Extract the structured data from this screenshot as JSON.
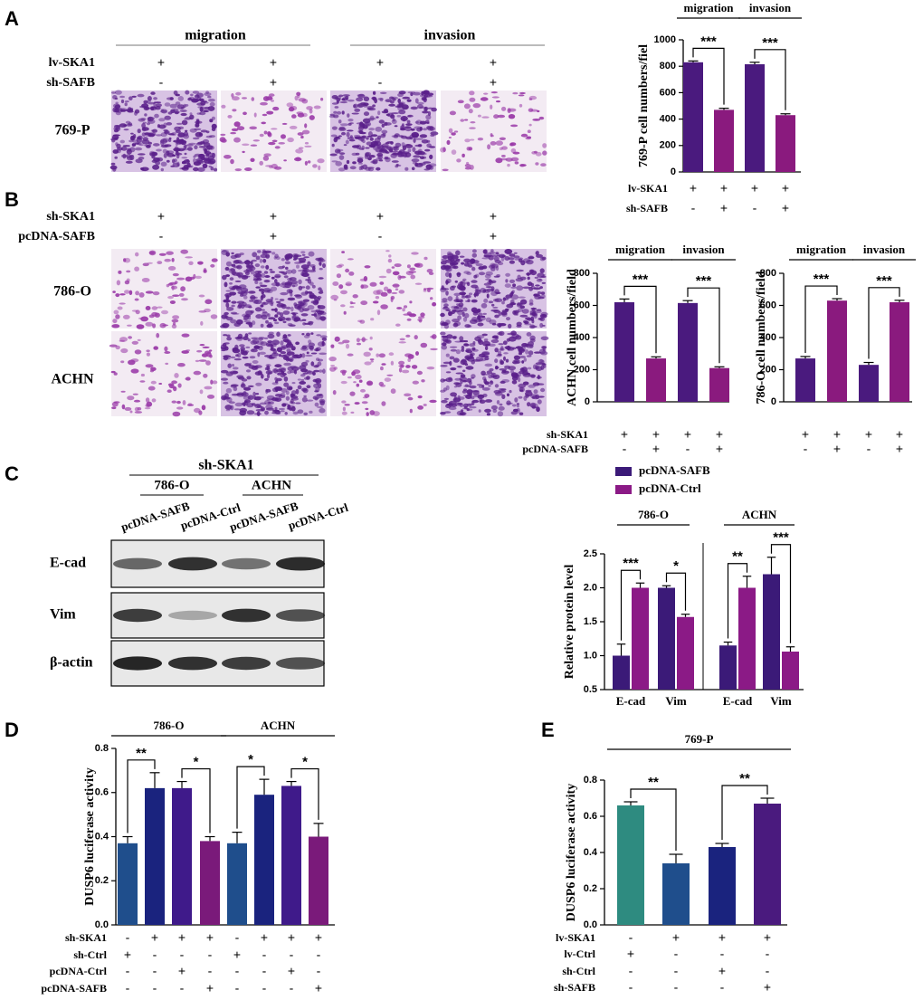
{
  "panels": {
    "letters": [
      "A",
      "B",
      "C",
      "D",
      "E"
    ]
  },
  "panel_a": {
    "headers": [
      "migration",
      "invasion"
    ],
    "rows": [
      {
        "label": "lv-SKA1",
        "signs": [
          "+",
          "+",
          "+",
          "+"
        ]
      },
      {
        "label": "sh-SAFB",
        "signs": [
          "-",
          "+",
          "-",
          "+"
        ]
      }
    ],
    "cell_lines": [
      "769-P"
    ]
  },
  "panel_b": {
    "rows": [
      {
        "label": "sh-SKA1",
        "signs": [
          "+",
          "+",
          "+",
          "+"
        ]
      },
      {
        "label": "pcDNA-SAFB",
        "signs": [
          "-",
          "+",
          "-",
          "+"
        ]
      }
    ],
    "cell_lines": [
      "786-O",
      "ACHN"
    ]
  },
  "panel_c": {
    "treatment": "sh-SKA1",
    "groups": [
      "786-O",
      "ACHN"
    ],
    "lanes": [
      "pcDNA-SAFB",
      "pcDNA-Ctrl",
      "pcDNA-SAFB",
      "pcDNA-Ctrl"
    ],
    "proteins": [
      "E-cad",
      "Vim",
      "β-actin"
    ]
  },
  "chart_data": [
    {
      "type": "bar",
      "ylabel": "769-P cell numbers/fiel",
      "ylim": [
        0,
        1000
      ],
      "yticks": [
        0,
        200,
        400,
        600,
        800,
        1000
      ],
      "series": [
        {
          "values": [
            830,
            470,
            815,
            430
          ],
          "errors": [
            10,
            12,
            15,
            10
          ],
          "colors": [
            "#4a1a7e",
            "#8a1a7e",
            "#4a1a7e",
            "#8a1a7e"
          ]
        }
      ],
      "groups": [
        "migration",
        "invasion"
      ],
      "significance": [
        "***",
        "***"
      ],
      "conditions": [
        {
          "label": "lv-SKA1",
          "signs": [
            "+",
            "+",
            "+",
            "+"
          ]
        },
        {
          "label": "sh-SAFB",
          "signs": [
            "-",
            "+",
            "-",
            "+"
          ]
        }
      ]
    },
    {
      "type": "bar",
      "ylabel": "ACHN cell numbers/field",
      "ylim": [
        0,
        800
      ],
      "yticks": [
        0,
        200,
        400,
        600,
        800
      ],
      "series": [
        {
          "values": [
            620,
            270,
            615,
            210
          ],
          "errors": [
            20,
            10,
            15,
            8
          ],
          "colors": [
            "#4a1a7e",
            "#8a1a7e",
            "#4a1a7e",
            "#8a1a7e"
          ]
        }
      ],
      "groups": [
        "migration",
        "invasion"
      ],
      "significance": [
        "***",
        "***"
      ],
      "conditions": [
        {
          "label": "sh-SKA1",
          "signs": [
            "+",
            "+",
            "+",
            "+"
          ]
        },
        {
          "label": "pcDNA-SAFB",
          "signs": [
            "-",
            "+",
            "-",
            "+"
          ]
        }
      ]
    },
    {
      "type": "bar",
      "ylabel": "786-O cell numbers/field",
      "ylim": [
        0,
        800
      ],
      "yticks": [
        0,
        200,
        400,
        600,
        800
      ],
      "series": [
        {
          "values": [
            270,
            630,
            230,
            620
          ],
          "errors": [
            12,
            12,
            15,
            12
          ],
          "colors": [
            "#4a1a7e",
            "#8a1a7e",
            "#4a1a7e",
            "#8a1a7e"
          ]
        }
      ],
      "groups": [
        "migration",
        "invasion"
      ],
      "significance": [
        "***",
        "***"
      ],
      "conditions": [
        {
          "signs": [
            "+",
            "+",
            "+",
            "+"
          ]
        },
        {
          "signs": [
            "-",
            "+",
            "-",
            "+"
          ]
        }
      ]
    },
    {
      "type": "grouped-bar",
      "ylabel": "Relative protein level",
      "ylim": [
        0.5,
        2.5
      ],
      "yticks": [
        {
          "value": 0.5,
          "label": "0.5"
        },
        {
          "value": 1,
          "label": "1.0"
        },
        {
          "value": 1.5,
          "label": "1.5"
        },
        {
          "value": 2,
          "label": "2.0"
        },
        {
          "value": 2.5,
          "label": "2.5"
        }
      ],
      "categories": [
        "E-cad",
        "Vim",
        "E-cad",
        "Vim"
      ],
      "series": [
        {
          "name": "pcDNA-SAFB",
          "color": "#3b1a78",
          "values": [
            1.0,
            2.0,
            1.15,
            2.2
          ],
          "errors": [
            0.17,
            0.03,
            0.05,
            0.25
          ]
        },
        {
          "name": "pcDNA-Ctrl",
          "color": "#8b1a86",
          "values": [
            2.0,
            1.57,
            2.0,
            1.06
          ],
          "errors": [
            0.07,
            0.04,
            0.17,
            0.07
          ]
        }
      ],
      "groups": [
        "786-O",
        "ACHN"
      ],
      "significance": [
        "***",
        "*",
        "**",
        "***"
      ]
    },
    {
      "type": "bar",
      "ylabel": "DUSP6 luciferase activity",
      "ylim": [
        0,
        0.8
      ],
      "yticks": [
        {
          "value": 0,
          "label": "0.0"
        },
        0.2,
        0.4,
        0.6,
        0.8
      ],
      "series": [
        {
          "values": [
            0.37,
            0.62,
            0.62,
            0.38,
            0.37,
            0.59,
            0.63,
            0.4
          ],
          "errors": [
            0.03,
            0.07,
            0.03,
            0.02,
            0.05,
            0.07,
            0.02,
            0.06
          ],
          "colors": [
            "#1f4e8c",
            "#1a237e",
            "#3f1a8a",
            "#7a1a7a",
            "#1f4e8c",
            "#1a237e",
            "#3f1a8a",
            "#7a1a7a"
          ]
        }
      ],
      "groups": [
        "786-O",
        "ACHN"
      ],
      "significance": [
        "**",
        "*",
        "*",
        "*"
      ],
      "conditions": [
        {
          "label": "sh-SKA1",
          "signs": [
            "-",
            "+",
            "+",
            "+",
            "-",
            "+",
            "+",
            "+"
          ]
        },
        {
          "label": "sh-Ctrl",
          "signs": [
            "+",
            "-",
            "-",
            "-",
            "+",
            "-",
            "-",
            "-"
          ]
        },
        {
          "label": "pcDNA-Ctrl",
          "signs": [
            "-",
            "-",
            "+",
            "-",
            "-",
            "-",
            "+",
            "-"
          ]
        },
        {
          "label": "pcDNA-SAFB",
          "signs": [
            "-",
            "-",
            "-",
            "+",
            "-",
            "-",
            "-",
            "+"
          ]
        }
      ]
    },
    {
      "type": "bar",
      "ylabel": "DUSP6 luciferase activity",
      "ylim": [
        0,
        0.8
      ],
      "yticks": [
        {
          "value": 0,
          "label": "0.0"
        },
        0.2,
        0.4,
        0.6,
        0.8
      ],
      "series": [
        {
          "values": [
            0.66,
            0.34,
            0.43,
            0.67
          ],
          "errors": [
            0.02,
            0.05,
            0.02,
            0.03
          ],
          "colors": [
            "#2e8b80",
            "#1f4e8c",
            "#1a237e",
            "#4a1a7e"
          ]
        }
      ],
      "groups": [
        "769-P"
      ],
      "significance": [
        "**",
        "**"
      ],
      "conditions": [
        {
          "label": "lv-SKA1",
          "signs": [
            "-",
            "+",
            "+",
            "+"
          ]
        },
        {
          "label": "lv-Ctrl",
          "signs": [
            "+",
            "-",
            "-",
            "-"
          ]
        },
        {
          "label": "sh-Ctrl",
          "signs": [
            "-",
            "-",
            "+",
            "-"
          ]
        },
        {
          "label": "sh-SAFB",
          "signs": [
            "-",
            "-",
            "-",
            "+"
          ]
        }
      ]
    }
  ]
}
